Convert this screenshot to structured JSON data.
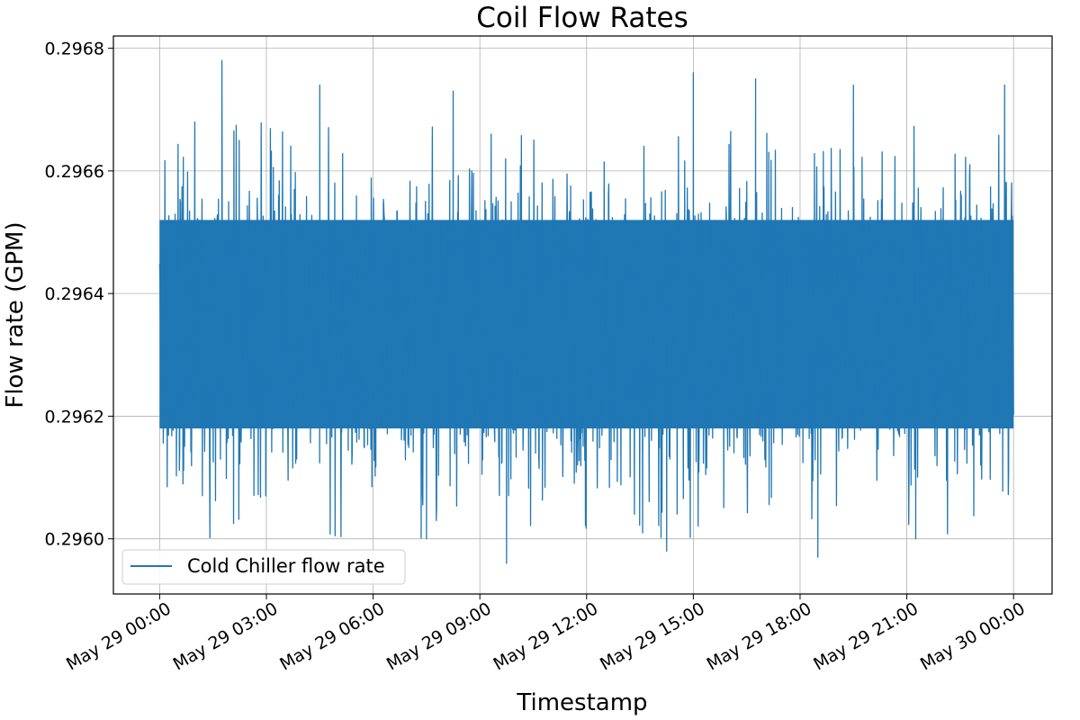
{
  "chart_data": {
    "type": "line",
    "title": "Coil Flow Rates",
    "xlabel": "Timestamp",
    "ylabel": "Flow rate (GPM)",
    "xlim": [
      "2024-05-28 22:42",
      "2024-05-30 01:05"
    ],
    "ylim": [
      0.29591,
      0.29682
    ],
    "x_range": [
      "2024-05-29 00:00",
      "2024-05-30 00:00"
    ],
    "x_ticks": [
      "May 29 00:00",
      "May 29 03:00",
      "May 29 06:00",
      "May 29 09:00",
      "May 29 12:00",
      "May 29 15:00",
      "May 29 18:00",
      "May 29 21:00",
      "May 30 00:00"
    ],
    "y_ticks": [
      "0.2960",
      "0.2962",
      "0.2964",
      "0.2966",
      "0.2968"
    ],
    "grid": true,
    "legend": "bottom-left",
    "series": [
      {
        "name": "Cold Chiller flow rate",
        "color": "#1f77b4",
        "mean": 0.29634,
        "band_low": 0.29618,
        "band_high": 0.29652,
        "min": 0.29596,
        "max": 0.29678,
        "peaks": [
          {
            "x": "2024-05-29 01:45",
            "y": 0.29678
          },
          {
            "x": "2024-05-29 04:30",
            "y": 0.29674
          },
          {
            "x": "2024-05-29 08:15",
            "y": 0.29673
          },
          {
            "x": "2024-05-29 15:00",
            "y": 0.29676
          },
          {
            "x": "2024-05-29 16:45",
            "y": 0.29675
          },
          {
            "x": "2024-05-29 19:30",
            "y": 0.29674
          },
          {
            "x": "2024-05-29 23:45",
            "y": 0.29674
          }
        ],
        "troughs": [
          {
            "x": "2024-05-29 07:30",
            "y": 0.296
          },
          {
            "x": "2024-05-29 09:45",
            "y": 0.29596
          },
          {
            "x": "2024-05-29 14:15",
            "y": 0.29598
          },
          {
            "x": "2024-05-29 18:30",
            "y": 0.29597
          },
          {
            "x": "2024-05-29 21:15",
            "y": 0.296
          }
        ]
      }
    ]
  }
}
